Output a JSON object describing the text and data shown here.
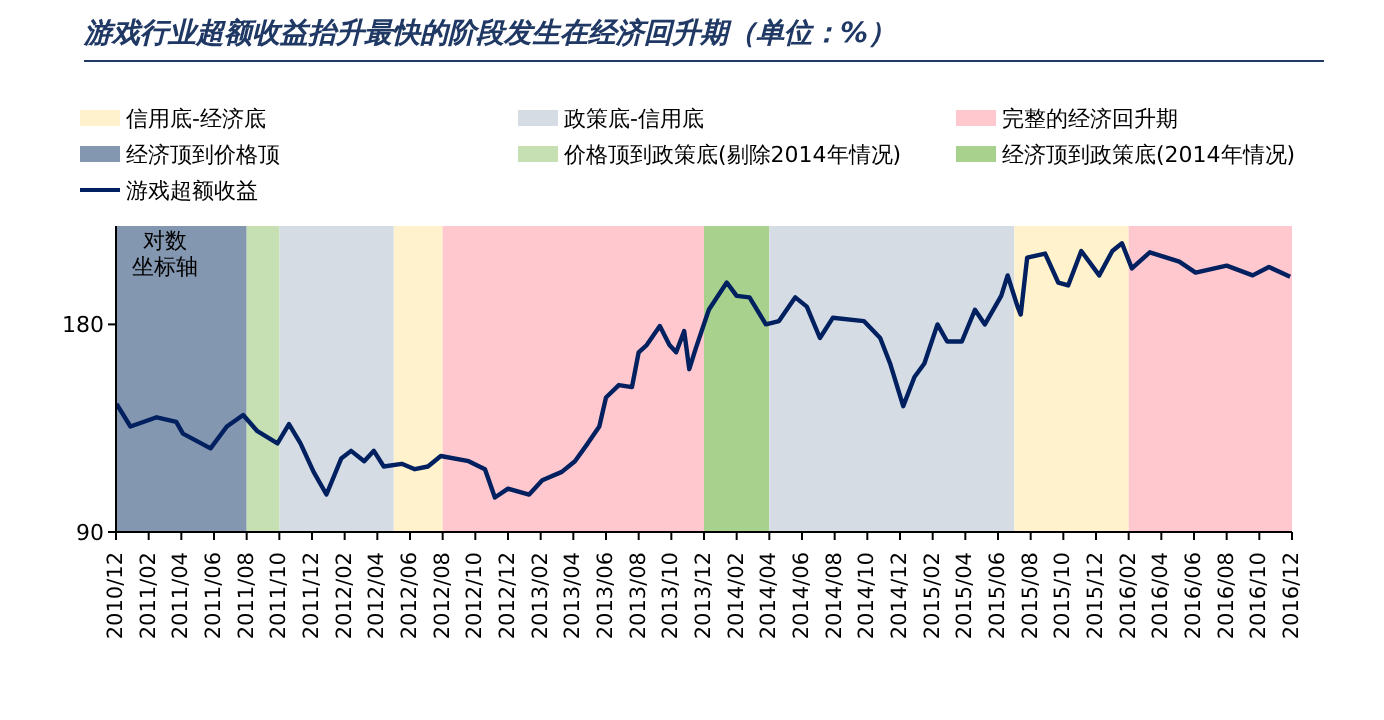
{
  "chart_data": {
    "type": "line",
    "title": "游戏行业超额收益抬升最快的阶段发生在经济回升期（单位：%）",
    "ylabel": "对数坐标轴",
    "log": true,
    "legend": "top",
    "marker": "none",
    "line_style": "solid",
    "xlim": [
      "2010-12",
      "2016-12"
    ],
    "xticks": [
      {
        "value": "2010-12",
        "label": "2010/12"
      },
      {
        "value": "2011-02",
        "label": "2011/02"
      },
      {
        "value": "2011-04",
        "label": "2011/04"
      },
      {
        "value": "2011-06",
        "label": "2011/06"
      },
      {
        "value": "2011-08",
        "label": "2011/08"
      },
      {
        "value": "2011-10",
        "label": "2011/10"
      },
      {
        "value": "2011-12",
        "label": "2011/12"
      },
      {
        "value": "2012-02",
        "label": "2012/02"
      },
      {
        "value": "2012-04",
        "label": "2012/04"
      },
      {
        "value": "2012-06",
        "label": "2012/06"
      },
      {
        "value": "2012-08",
        "label": "2012/08"
      },
      {
        "value": "2012-10",
        "label": "2012/10"
      },
      {
        "value": "2012-12",
        "label": "2012/12"
      },
      {
        "value": "2013-02",
        "label": "2013/02"
      },
      {
        "value": "2013-04",
        "label": "2013/04"
      },
      {
        "value": "2013-06",
        "label": "2013/06"
      },
      {
        "value": "2013-08",
        "label": "2013/08"
      },
      {
        "value": "2013-10",
        "label": "2013/10"
      },
      {
        "value": "2013-12",
        "label": "2013/12"
      },
      {
        "value": "2014-02",
        "label": "2014/02"
      },
      {
        "value": "2014-04",
        "label": "2014/04"
      },
      {
        "value": "2014-06",
        "label": "2014/06"
      },
      {
        "value": "2014-08",
        "label": "2014/08"
      },
      {
        "value": "2014-10",
        "label": "2014/10"
      },
      {
        "value": "2014-12",
        "label": "2014/12"
      },
      {
        "value": "2015-02",
        "label": "2015/02"
      },
      {
        "value": "2015-04",
        "label": "2015/04"
      },
      {
        "value": "2015-06",
        "label": "2015/06"
      },
      {
        "value": "2015-08",
        "label": "2015/08"
      },
      {
        "value": "2015-10",
        "label": "2015/10"
      },
      {
        "value": "2015-12",
        "label": "2015/12"
      },
      {
        "value": "2016-02",
        "label": "2016/02"
      },
      {
        "value": "2016-04",
        "label": "2016/04"
      },
      {
        "value": "2016-06",
        "label": "2016/06"
      },
      {
        "value": "2016-08",
        "label": "2016/08"
      },
      {
        "value": "2016-10",
        "label": "2016/10"
      },
      {
        "value": "2016-12",
        "label": "2016/12"
      }
    ],
    "ylim": [
      90,
      250
    ],
    "yticks": [
      90,
      180
    ],
    "bands": [
      {
        "axis": "x",
        "from": "2012-05",
        "to": "2012-08",
        "label": "信用底-经济底",
        "color": "#fff2cc"
      },
      {
        "axis": "x",
        "from": "2011-10",
        "to": "2012-05",
        "label": "政策底-信用底",
        "color": "#d6dce4"
      },
      {
        "axis": "x",
        "from": "2012-08",
        "to": "2013-12",
        "label": "完整的经济回升期",
        "color": "#ffc7ce"
      },
      {
        "axis": "x",
        "from": "2010-12",
        "to": "2011-08",
        "label": "经济顶到价格顶",
        "color": "#8497b0"
      },
      {
        "axis": "x",
        "from": "2011-08",
        "to": "2011-10",
        "label": "价格顶到政策底(剔除2014年情况)",
        "color": "#c6e0b4"
      },
      {
        "axis": "x",
        "from": "2013-12",
        "to": "2014-04",
        "label": "经济顶到政策底(2014年情况)",
        "color": "#a9d18e"
      },
      {
        "axis": "x",
        "from": "2014-04",
        "to": "2015-07",
        "color": "#d6dce4"
      },
      {
        "axis": "x",
        "from": "2015-07",
        "to": "2016-02",
        "color": "#fff2cc"
      },
      {
        "axis": "x",
        "from": "2016-02",
        "to": "2016-12",
        "color": "#ffc7ce"
      }
    ],
    "series": [
      {
        "name": "游戏超额收益",
        "color": "#002060",
        "x": [
          "2010-12-02",
          "2010-12-28",
          "2011-02-16",
          "2011-03-22",
          "2011-04-04",
          "2011-05-25",
          "2011-06-25",
          "2011-07-25",
          "2011-08-21",
          "2011-09-28",
          "2011-10-19",
          "2011-11-10",
          "2011-12-04",
          "2011-12-28",
          "2012-01-25",
          "2012-02-13",
          "2012-03-07",
          "2012-03-25",
          "2012-04-13",
          "2012-05-16",
          "2012-06-10",
          "2012-07-04",
          "2012-07-28",
          "2012-09-19",
          "2012-10-19",
          "2012-11-07",
          "2012-12-01",
          "2013-01-10",
          "2013-02-04",
          "2013-03-10",
          "2013-04-04",
          "2013-04-28",
          "2013-05-19",
          "2013-06-01",
          "2013-06-25",
          "2013-07-19",
          "2013-08-01",
          "2013-08-16",
          "2013-09-10",
          "2013-09-28",
          "2013-10-10",
          "2013-10-25",
          "2013-11-04",
          "2013-11-16",
          "2013-12-10",
          "2014-01-13",
          "2014-02-01",
          "2014-02-25",
          "2014-03-25",
          "2014-04-19",
          "2014-05-19",
          "2014-06-10",
          "2014-07-04",
          "2014-07-28",
          "2014-09-25",
          "2014-10-25",
          "2014-11-13",
          "2014-12-07",
          "2014-12-28",
          "2015-01-16",
          "2015-02-10",
          "2015-02-28",
          "2015-03-25",
          "2015-04-19",
          "2015-05-07",
          "2015-06-07",
          "2015-06-19",
          "2015-07-07",
          "2015-07-13",
          "2015-07-25",
          "2015-08-28",
          "2015-09-22",
          "2015-10-10",
          "2015-11-04",
          "2015-12-07",
          "2016-01-01",
          "2016-01-19",
          "2016-02-07",
          "2016-03-10",
          "2016-05-04",
          "2016-06-04",
          "2016-08-01",
          "2016-09-19",
          "2016-10-19",
          "2016-11-28"
        ],
        "values": [
          138,
          128,
          132,
          130,
          125,
          119,
          128,
          133,
          126,
          121,
          129,
          121,
          110,
          102,
          115,
          118,
          114,
          118,
          112,
          113,
          111,
          112,
          116,
          114,
          111,
          101,
          104,
          102,
          107,
          110,
          114,
          121,
          128,
          141,
          147,
          146,
          164,
          168,
          179,
          168,
          164,
          176,
          155,
          166,
          189,
          207,
          198,
          197,
          180,
          182,
          197,
          191,
          172,
          184,
          182,
          172,
          158,
          137,
          151,
          158,
          180,
          170,
          170,
          189,
          180,
          198,
          212,
          191,
          186,
          225,
          228,
          207,
          205,
          230,
          212,
          230,
          236,
          217,
          229,
          222,
          214,
          219,
          212,
          218,
          211
        ]
      }
    ]
  }
}
